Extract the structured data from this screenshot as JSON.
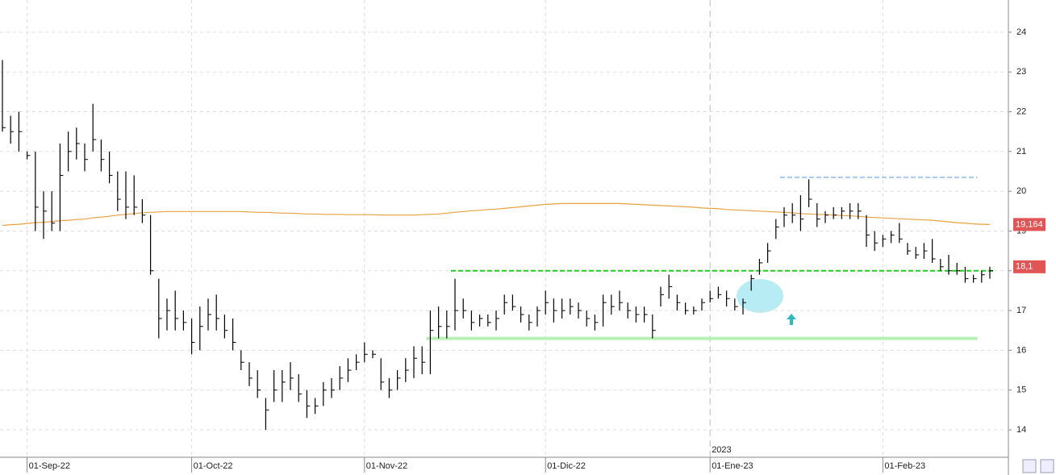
{
  "chart_data": {
    "type": "ohlc",
    "categories": [
      null,
      null,
      null,
      "01-Sep-22",
      null,
      null,
      null,
      null,
      null,
      null,
      null,
      null,
      null,
      null,
      null,
      null,
      null,
      null,
      null,
      null,
      null,
      null,
      null,
      "01-Oct-22",
      null,
      null,
      null,
      null,
      null,
      null,
      null,
      null,
      null,
      null,
      null,
      null,
      null,
      null,
      null,
      null,
      null,
      null,
      null,
      null,
      "01-Nov-22",
      null,
      null,
      null,
      null,
      null,
      null,
      null,
      null,
      null,
      null,
      null,
      null,
      null,
      null,
      null,
      null,
      null,
      null,
      null,
      null,
      null,
      "01-Dic-22",
      null,
      null,
      null,
      null,
      null,
      null,
      null,
      null,
      null,
      null,
      null,
      null,
      null,
      null,
      null,
      null,
      null,
      null,
      null,
      "01-Ene-23",
      null,
      null,
      null,
      null,
      null,
      null,
      null,
      null,
      null,
      null,
      null,
      null,
      null,
      null,
      null,
      null,
      null,
      null,
      null,
      null,
      "01-Feb-23",
      null,
      null,
      null,
      null,
      null,
      null,
      null,
      null,
      null,
      null,
      null,
      null,
      null
    ],
    "high": [
      23.3,
      21.9,
      22.0,
      21.0,
      21.0,
      20.0,
      20.0,
      21.2,
      21.5,
      21.6,
      21.2,
      22.2,
      21.3,
      21.0,
      20.5,
      20.5,
      20.4,
      19.8,
      19.4,
      17.8,
      17.3,
      17.5,
      17.0,
      16.8,
      17.1,
      17.3,
      17.4,
      16.9,
      16.8,
      16.0,
      15.7,
      15.5,
      14.8,
      15.5,
      15.5,
      15.7,
      15.4,
      15.0,
      14.8,
      15.2,
      15.3,
      15.6,
      15.8,
      15.9,
      16.2,
      16.0,
      15.8,
      15.3,
      15.5,
      15.8,
      16.1,
      16.1,
      17.0,
      17.1,
      17.0,
      17.8,
      17.3,
      17.0,
      16.9,
      16.9,
      17.0,
      17.4,
      17.4,
      17.1,
      16.9,
      17.1,
      17.5,
      17.3,
      17.3,
      17.3,
      17.2,
      17.0,
      16.9,
      17.4,
      17.4,
      17.5,
      17.2,
      17.1,
      17.1,
      16.9,
      17.6,
      17.9,
      17.4,
      17.2,
      17.1,
      17.3,
      17.5,
      17.6,
      17.5,
      17.3,
      17.3,
      17.9,
      18.3,
      18.7,
      19.3,
      19.6,
      19.7,
      19.9,
      20.3,
      19.7,
      19.5,
      19.6,
      19.6,
      19.7,
      19.7,
      19.4,
      19.0,
      18.9,
      19.0,
      19.2,
      18.7,
      18.6,
      18.7,
      18.8,
      18.3,
      18.4,
      18.2,
      18.1,
      17.9,
      18.0,
      18.1
    ],
    "low": [
      21.5,
      21.2,
      21.0,
      20.8,
      19.0,
      18.8,
      19.0,
      19.0,
      20.5,
      20.8,
      20.5,
      21.0,
      20.5,
      20.2,
      19.5,
      19.3,
      19.4,
      19.2,
      17.9,
      16.3,
      16.5,
      16.5,
      16.5,
      15.9,
      16.0,
      16.5,
      16.5,
      16.3,
      16.0,
      15.5,
      15.1,
      14.8,
      14.0,
      14.7,
      14.7,
      15.0,
      14.7,
      14.3,
      14.4,
      14.6,
      14.8,
      15.0,
      15.2,
      15.5,
      15.7,
      15.8,
      15.0,
      14.8,
      15.0,
      15.2,
      15.3,
      15.4,
      15.4,
      16.3,
      16.3,
      16.5,
      16.8,
      16.5,
      16.6,
      16.6,
      16.5,
      16.9,
      17.0,
      16.7,
      16.5,
      16.6,
      16.9,
      16.7,
      16.8,
      16.9,
      16.8,
      16.6,
      16.5,
      16.6,
      16.9,
      17.0,
      16.8,
      16.7,
      16.7,
      16.3,
      17.1,
      17.3,
      17.0,
      16.9,
      16.9,
      17.0,
      17.2,
      17.3,
      17.1,
      17.0,
      16.9,
      17.5,
      17.9,
      18.2,
      18.8,
      19.1,
      19.2,
      19.0,
      19.6,
      19.1,
      19.2,
      19.3,
      19.3,
      19.3,
      19.3,
      18.6,
      18.5,
      18.6,
      18.7,
      18.7,
      18.4,
      18.3,
      18.3,
      18.2,
      18.0,
      17.9,
      17.9,
      17.7,
      17.7,
      17.7,
      17.8
    ],
    "close": [
      21.6,
      21.5,
      21.5,
      20.9,
      19.6,
      19.5,
      19.2,
      20.4,
      21.0,
      21.2,
      20.8,
      21.3,
      20.8,
      20.4,
      19.8,
      19.6,
      19.6,
      19.4,
      18.0,
      16.8,
      17.0,
      16.8,
      16.7,
      16.2,
      16.6,
      16.9,
      16.8,
      16.5,
      16.2,
      15.7,
      15.3,
      15.0,
      14.5,
      15.0,
      15.2,
      15.3,
      14.9,
      14.6,
      14.6,
      15.0,
      15.0,
      15.3,
      15.5,
      15.7,
      15.9,
      15.9,
      15.2,
      15.0,
      15.3,
      15.5,
      15.8,
      15.7,
      16.5,
      16.6,
      16.6,
      17.0,
      17.0,
      16.7,
      16.8,
      16.7,
      16.8,
      17.2,
      17.1,
      16.9,
      16.7,
      17.0,
      17.2,
      17.0,
      17.0,
      17.1,
      17.0,
      16.8,
      16.7,
      17.2,
      17.1,
      17.2,
      17.0,
      16.9,
      16.9,
      16.5,
      17.4,
      17.6,
      17.2,
      17.0,
      17.0,
      17.2,
      17.3,
      17.4,
      17.3,
      17.1,
      17.2,
      17.8,
      18.2,
      18.5,
      19.1,
      19.4,
      19.4,
      19.3,
      19.8,
      19.3,
      19.4,
      19.4,
      19.5,
      19.5,
      19.5,
      18.9,
      18.7,
      18.8,
      18.9,
      18.8,
      18.5,
      18.4,
      18.5,
      18.3,
      18.1,
      18.0,
      18.0,
      17.8,
      17.8,
      17.9,
      18.0
    ],
    "ma": [
      19.14,
      19.16,
      19.17,
      19.19,
      19.21,
      19.22,
      19.24,
      19.26,
      19.27,
      19.29,
      19.3,
      19.33,
      19.35,
      19.37,
      19.4,
      19.42,
      19.44,
      19.46,
      19.47,
      19.48,
      19.49,
      19.49,
      19.49,
      19.49,
      19.49,
      19.49,
      19.49,
      19.49,
      19.49,
      19.49,
      19.48,
      19.47,
      19.47,
      19.46,
      19.45,
      19.45,
      19.44,
      19.43,
      19.43,
      19.42,
      19.42,
      19.42,
      19.41,
      19.41,
      19.41,
      19.41,
      19.4,
      19.4,
      19.4,
      19.4,
      19.4,
      19.41,
      19.42,
      19.43,
      19.45,
      19.47,
      19.49,
      19.51,
      19.52,
      19.54,
      19.55,
      19.57,
      19.59,
      19.61,
      19.63,
      19.65,
      19.67,
      19.68,
      19.69,
      19.69,
      19.69,
      19.69,
      19.69,
      19.69,
      19.69,
      19.69,
      19.68,
      19.67,
      19.66,
      19.65,
      19.64,
      19.63,
      19.62,
      19.61,
      19.6,
      19.58,
      19.57,
      19.56,
      19.54,
      19.53,
      19.52,
      19.51,
      19.5,
      19.49,
      19.48,
      19.47,
      19.46,
      19.44,
      19.43,
      19.42,
      19.41,
      19.4,
      19.39,
      19.38,
      19.37,
      19.35,
      19.34,
      19.33,
      19.32,
      19.31,
      19.3,
      19.29,
      19.28,
      19.27,
      19.25,
      19.23,
      19.21,
      19.2,
      19.18,
      19.17,
      19.164
    ],
    "bar_color": "#000000",
    "ma_color": "#e8a040",
    "levels": [
      {
        "value": 20.35,
        "color": "#a8c8f0",
        "dashed": true
      },
      {
        "value": 18.0,
        "color": "#22cc22",
        "dashed": true
      },
      {
        "value": 16.3,
        "color": "#b8f0b8",
        "dashed": false
      }
    ],
    "price_labels": [
      {
        "value": 19.164,
        "label": "19,164",
        "color": "#e05555"
      },
      {
        "value": 18.1,
        "label": "18,1",
        "color": "#e05555"
      }
    ],
    "year_label": "2023",
    "ylim": [
      13.31,
      24.81
    ],
    "yticks": [
      14,
      15,
      16,
      17,
      18,
      19,
      20,
      21,
      22,
      23,
      24
    ],
    "grid": true
  }
}
